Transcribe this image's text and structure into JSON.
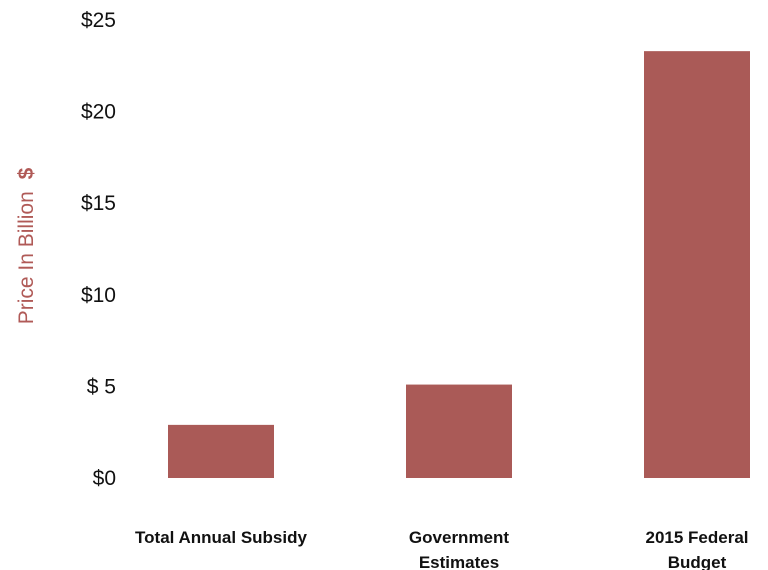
{
  "chart_data": {
    "type": "bar",
    "categories": [
      [
        "Total Annual Subsidy"
      ],
      [
        "Government",
        "Estimates"
      ],
      [
        "2015 Federal",
        "Budget"
      ]
    ],
    "values": [
      2.9,
      5.1,
      23.3
    ],
    "ylabel_text": "Price In Billion",
    "ylabel_unit": "$",
    "yticks": [
      {
        "value": 0,
        "label": "$0"
      },
      {
        "value": 5,
        "label": "$ 5"
      },
      {
        "value": 10,
        "label": "$10"
      },
      {
        "value": 15,
        "label": "$15"
      },
      {
        "value": 20,
        "label": "$20"
      },
      {
        "value": 25,
        "label": "$25"
      }
    ],
    "ylim": [
      0,
      25
    ],
    "grid": false,
    "legend": "none",
    "colors": {
      "bar": "#aa5a57",
      "ylabel": "#b05a57",
      "text": "#111111"
    }
  }
}
